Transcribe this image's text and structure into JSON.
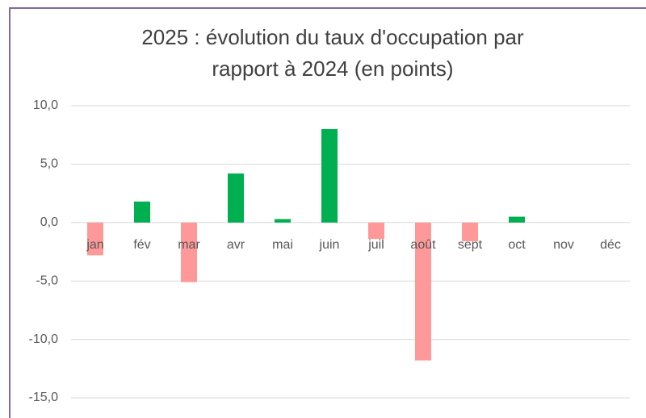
{
  "chart_data": {
    "type": "bar",
    "title": [
      "2025 : évolution du taux d'occupation par",
      "rapport à 2024 (en points)"
    ],
    "categories": [
      "jan",
      "fév",
      "mar",
      "avr",
      "mai",
      "juin",
      "juil",
      "août",
      "sept",
      "oct",
      "nov",
      "déc"
    ],
    "values": [
      -2.8,
      1.8,
      -5.1,
      4.2,
      0.3,
      8.0,
      -1.4,
      -11.8,
      -1.6,
      0.5,
      null,
      null
    ],
    "color": "#00b050",
    "negative_color": "#ff9999",
    "ylim": [
      -15,
      10
    ],
    "yticks": [
      {
        "value": -15,
        "label": "-15,0"
      },
      {
        "value": -10,
        "label": "-10,0"
      },
      {
        "value": -5,
        "label": "-5,0"
      },
      {
        "value": 0,
        "label": "0,0"
      },
      {
        "value": 5,
        "label": "5,0"
      },
      {
        "value": 10,
        "label": "10,0"
      }
    ],
    "grid": true
  }
}
